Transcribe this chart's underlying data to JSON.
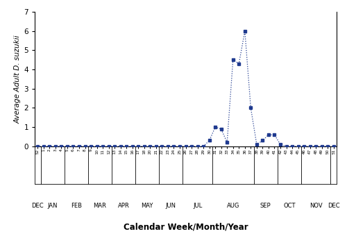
{
  "week_labels": [
    "52",
    "1",
    "2",
    "3",
    "4",
    "5",
    "6",
    "7",
    "8",
    "9",
    "10",
    "11",
    "12",
    "13",
    "14",
    "15",
    "16",
    "17",
    "18",
    "20",
    "21",
    "22",
    "23",
    "24",
    "25",
    "26",
    "27",
    "28",
    "29",
    "30",
    "31",
    "32",
    "33",
    "34",
    "35",
    "36",
    "37",
    "38",
    "39",
    "40",
    "41",
    "42",
    "43",
    "44",
    "45",
    "46",
    "47",
    "48",
    "49",
    "50",
    "51"
  ],
  "values": [
    0,
    0,
    0,
    0,
    0,
    0,
    0,
    0,
    0,
    0,
    0,
    0,
    0,
    0,
    0,
    0,
    0,
    0,
    0,
    0,
    0,
    0,
    0,
    0,
    0,
    0,
    0,
    0,
    0,
    0.3,
    1.0,
    0.9,
    0.2,
    4.5,
    4.3,
    6.0,
    2.0,
    0.1,
    0.3,
    0.6,
    0.6,
    0.1,
    0,
    0,
    0,
    0,
    0,
    0,
    0,
    0,
    0
  ],
  "month_labels": [
    "DEC",
    "JAN",
    "FEB",
    "MAR",
    "APR",
    "MAY",
    "JUN",
    "JUL",
    "AUG",
    "SEP",
    "OCT",
    "NOV",
    "DEC"
  ],
  "month_boundaries": [
    -0.5,
    0.5,
    4.5,
    8.5,
    12.5,
    16.5,
    20.5,
    24.5,
    29.5,
    36.5,
    40.5,
    44.5,
    49.5,
    50.5
  ],
  "xlabel": "Calendar Week/Month/Year",
  "ylabel": "Average Adult D. suzukii",
  "ylim": [
    0,
    7
  ],
  "yticks": [
    0,
    1,
    2,
    3,
    4,
    5,
    6,
    7
  ],
  "line_color": "#1f3a8f",
  "marker": "s",
  "markersize": 2.8,
  "linestyle": ":",
  "linewidth": 0.9
}
